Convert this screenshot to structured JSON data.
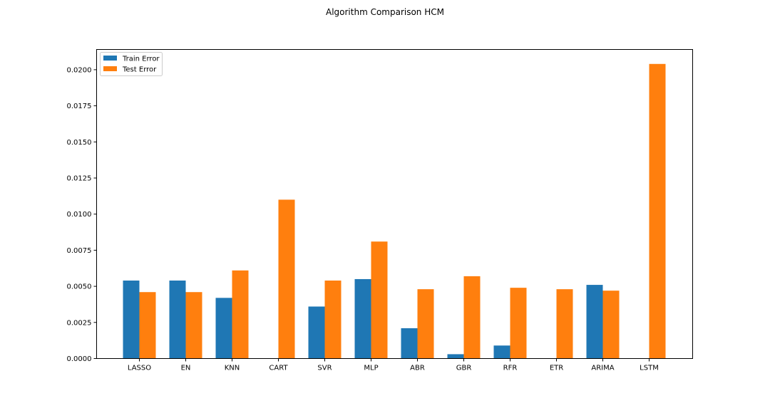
{
  "chart_data": {
    "type": "bar",
    "title": "Algorithm Comparison HCM",
    "xlabel": "",
    "ylabel": "",
    "categories": [
      "LASSO",
      "EN",
      "KNN",
      "CART",
      "SVR",
      "MLP",
      "ABR",
      "GBR",
      "RFR",
      "ETR",
      "ARIMA",
      "LSTM"
    ],
    "series": [
      {
        "name": "Train Error",
        "color": "#1f77b4",
        "values": [
          0.0054,
          0.0054,
          0.0042,
          0.0,
          0.0036,
          0.0055,
          0.0021,
          0.0003,
          0.0009,
          0.0,
          0.0051,
          0.0
        ]
      },
      {
        "name": "Test Error",
        "color": "#ff7f0e",
        "values": [
          0.0046,
          0.0046,
          0.0061,
          0.011,
          0.0054,
          0.0081,
          0.0048,
          0.0057,
          0.0049,
          0.0048,
          0.0047,
          0.0204
        ]
      }
    ],
    "ylim": [
      0,
      0.0214
    ],
    "yticks": [
      "0.0000",
      "0.0025",
      "0.0050",
      "0.0075",
      "0.0100",
      "0.0125",
      "0.0150",
      "0.0175",
      "0.0200"
    ],
    "legend": "top-left",
    "grid": false
  }
}
